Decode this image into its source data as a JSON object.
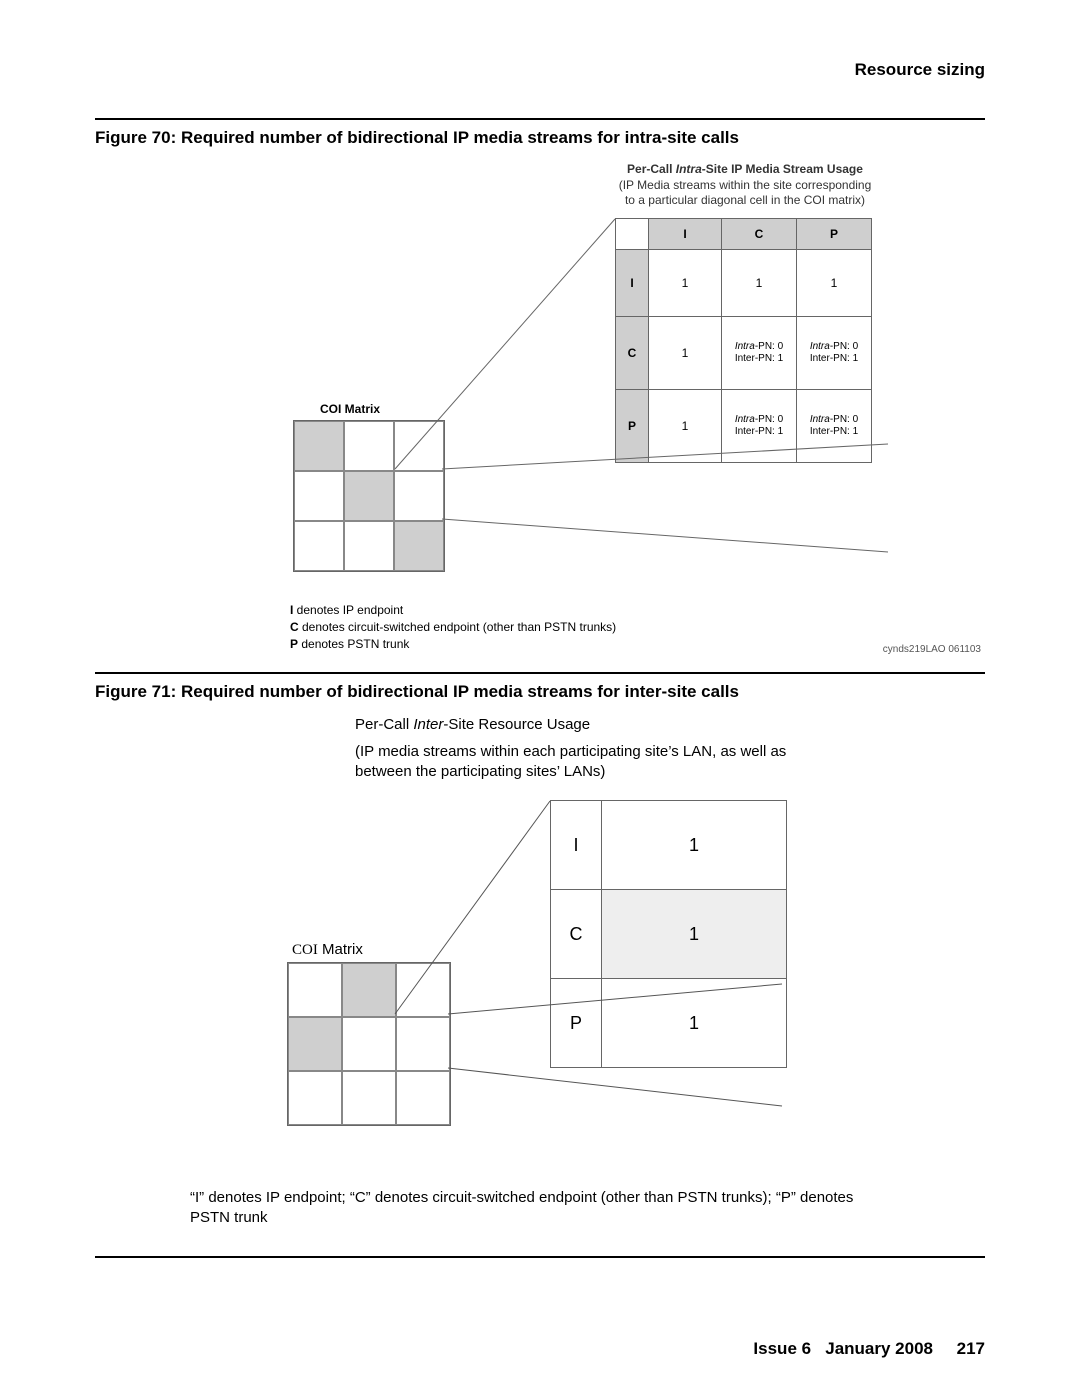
{
  "header": {
    "title": "Resource sizing"
  },
  "fig70": {
    "caption": "Figure 70: Required number of bidirectional IP media streams for intra-site calls",
    "desc_title_html": "Per-Call <i>Intra</i>-Site IP Media Stream Usage",
    "desc_sub1": "(IP Media streams within the site corresponding",
    "desc_sub2": "to a particular diagonal cell in the COI matrix)",
    "headers": [
      "I",
      "C",
      "P"
    ],
    "row_I": {
      "label": "I",
      "vals": [
        "1",
        "1",
        "1"
      ]
    },
    "row_C": {
      "label": "C",
      "v0": "1",
      "v1_l1_html": "<i>Intra</i>-PN: 0",
      "v1_l2": "Inter-PN: 1",
      "v2_l1_html": "<i>Intra</i>-PN: 0",
      "v2_l2": "Inter-PN: 1"
    },
    "row_P": {
      "label": "P",
      "v0": "1",
      "v1_l1_html": "<i>Intra</i>-PN: 0",
      "v1_l2": "Inter-PN: 1",
      "v2_l1_html": "<i>Intra</i>-PN: 0",
      "v2_l2": "Inter-PN: 1"
    },
    "coi_label": "COI Matrix",
    "coi_shaded": [
      0,
      4,
      8
    ],
    "legend": {
      "l1_html": "<b>I</b>  denotes IP endpoint",
      "l2_html": "<b>C</b> denotes circuit-switched endpoint (other than PSTN trunks)",
      "l3_html": "<b>P</b> denotes PSTN trunk"
    },
    "code": "cynds219LAO 061103"
  },
  "fig71": {
    "caption": "Figure 71: Required number of bidirectional IP media streams for inter-site calls",
    "desc_title_html": "Per-Call <i>Inter</i>-Site Resource Usage",
    "desc_sub": "(IP media streams within each participating site’s LAN, as well as between the participating sites’ LANs)",
    "rows": [
      {
        "label": "I",
        "val": "1"
      },
      {
        "label": "C",
        "val": "1"
      },
      {
        "label": "P",
        "val": "1"
      }
    ],
    "coi_label_html": "<span style=\"font-family: 'Times New Roman', serif;\">COI</span> Matrix",
    "coi_shaded": [
      1,
      3
    ],
    "legend": "“I” denotes IP endpoint; “C” denotes circuit-switched endpoint (other than PSTN trunks); “P” denotes PSTN trunk"
  },
  "footer": {
    "issue": "Issue 6",
    "date": "January 2008",
    "page": "217"
  },
  "colors": {
    "shade": "#cfcfcf",
    "line": "#666666"
  }
}
